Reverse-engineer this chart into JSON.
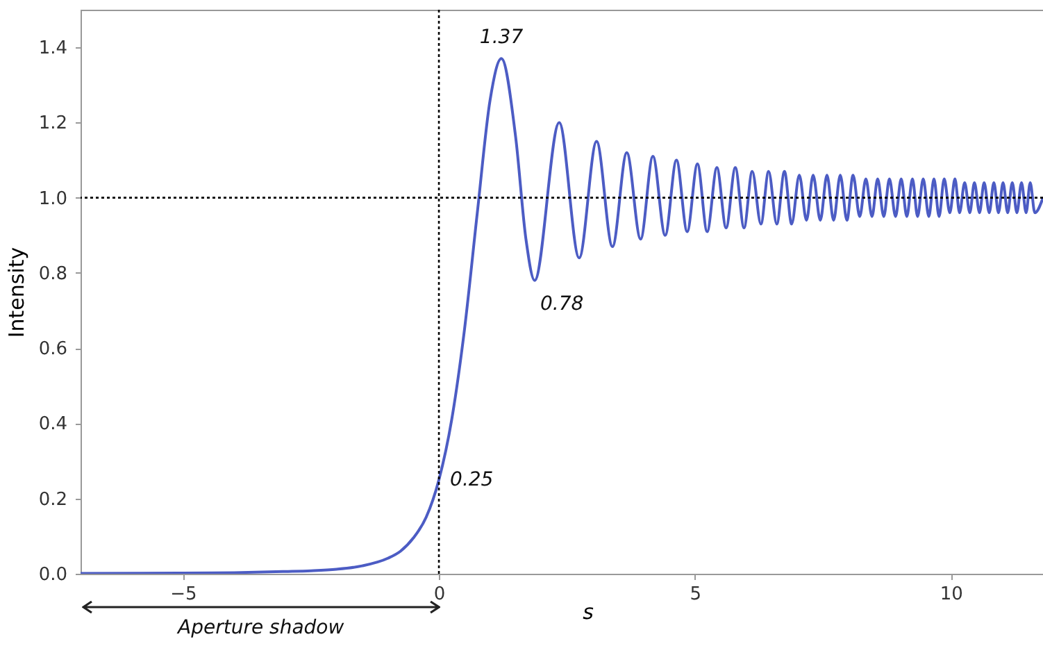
{
  "chart_data": {
    "type": "line",
    "xlabel": "s",
    "ylabel": "Intensity",
    "xlim": [
      -7,
      11.8
    ],
    "ylim": [
      0,
      1.5
    ],
    "xticks": [
      {
        "value": -5,
        "label": "−5"
      },
      0,
      5,
      10
    ],
    "yticks": [
      {
        "value": 0,
        "label": "0.0"
      },
      {
        "value": 0.2,
        "label": "0.2"
      },
      {
        "value": 0.4,
        "label": "0.4"
      },
      {
        "value": 0.6,
        "label": "0.6"
      },
      {
        "value": 0.8,
        "label": "0.8"
      },
      {
        "value": 1,
        "label": "1.0"
      },
      {
        "value": 1.2,
        "label": "1.2"
      },
      {
        "value": 1.4,
        "label": "1.4"
      }
    ],
    "grid": false,
    "series": [
      {
        "color": "#4c5cc4",
        "x": [
          -7,
          -5,
          -4,
          -3,
          -2.5,
          -2,
          -1.5,
          -1,
          -0.75,
          -0.5,
          -0.25,
          0,
          0.25,
          0.5,
          0.75,
          1,
          1.22,
          1.5,
          1.7,
          1.87,
          2.35,
          2.74,
          3.08,
          3.39,
          3.67,
          3.94,
          4.18,
          4.42,
          4.64,
          4.85,
          5.05,
          5.24,
          5.43,
          5.61,
          5.79,
          5.96,
          6.12,
          6.29,
          6.44,
          6.6,
          6.75,
          6.89,
          7.04,
          7.18,
          7.31,
          7.45,
          7.58,
          7.71,
          7.84,
          7.97,
          8.09,
          8.22,
          8.34,
          8.46,
          8.57,
          8.69,
          8.8,
          8.92,
          9.03,
          9.14,
          9.25,
          9.35,
          9.46,
          9.57,
          9.67,
          9.77,
          9.87,
          9.98,
          10.08,
          10.17,
          10.27,
          10.37,
          10.46,
          10.56,
          10.65,
          10.75,
          10.84,
          10.93,
          11.02,
          11.11,
          11.2,
          11.29,
          11.38,
          11.47,
          11.55,
          11.64,
          11.8
        ],
        "values": [
          0.001,
          0.002,
          0.003,
          0.006,
          0.008,
          0.012,
          0.021,
          0.041,
          0.06,
          0.095,
          0.15,
          0.25,
          0.41,
          0.65,
          0.96,
          1.26,
          1.37,
          1.16,
          0.89,
          0.78,
          1.2,
          0.84,
          1.15,
          0.87,
          1.12,
          0.89,
          1.11,
          0.9,
          1.1,
          0.91,
          1.09,
          0.91,
          1.08,
          0.92,
          1.08,
          0.92,
          1.07,
          0.93,
          1.07,
          0.93,
          1.07,
          0.93,
          1.06,
          0.94,
          1.06,
          0.94,
          1.06,
          0.94,
          1.06,
          0.94,
          1.06,
          0.95,
          1.05,
          0.95,
          1.05,
          0.95,
          1.05,
          0.95,
          1.05,
          0.95,
          1.05,
          0.95,
          1.05,
          0.95,
          1.05,
          0.95,
          1.05,
          0.96,
          1.05,
          0.96,
          1.04,
          0.96,
          1.04,
          0.96,
          1.04,
          0.96,
          1.04,
          0.96,
          1.04,
          0.96,
          1.04,
          0.96,
          1.04,
          0.96,
          1.04,
          0.96,
          1.0
        ]
      }
    ],
    "ref_lines": [
      {
        "axis": "x",
        "value": 0,
        "color": "#000000",
        "line_style": "dotted"
      },
      {
        "axis": "y",
        "value": 1,
        "color": "#000000",
        "line_style": "dotted"
      }
    ],
    "annotations": [
      {
        "text": "1.37",
        "x": 1.22,
        "y": 1.37
      },
      {
        "text": "0.78",
        "x": 1.87,
        "y": 0.78
      },
      {
        "text": "0.25",
        "x": 0,
        "y": 0.25
      },
      "Aperture shadow"
    ]
  }
}
